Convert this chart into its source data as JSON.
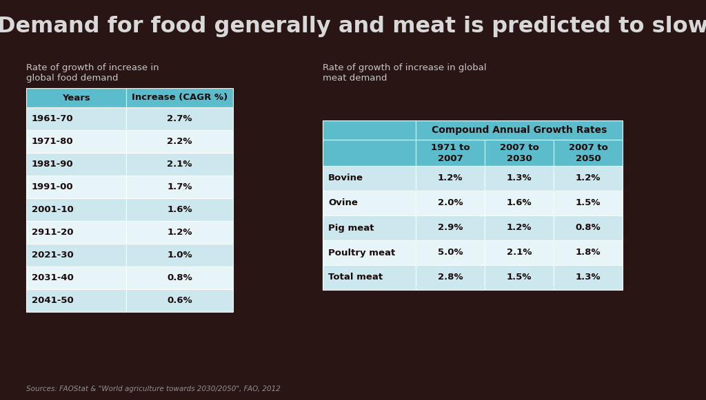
{
  "title": "Demand for food generally and meat is predicted to slow",
  "bg_color": "#2a1515",
  "source_text": "Sources: FAOStat & \"World agriculture towards 2030/2050\", FAO, 2012",
  "left_subtitle": "Rate of growth of increase in\nglobal food demand",
  "right_subtitle": "Rate of growth of increase in global\nmeat demand",
  "food_table": {
    "header": [
      "Years",
      "Increase (CAGR %)"
    ],
    "rows": [
      [
        "1961-70",
        "2.7%"
      ],
      [
        "1971-80",
        "2.2%"
      ],
      [
        "1981-90",
        "2.1%"
      ],
      [
        "1991-00",
        "1.7%"
      ],
      [
        "2001-10",
        "1.6%"
      ],
      [
        "2911-20",
        "1.2%"
      ],
      [
        "2021-30",
        "1.0%"
      ],
      [
        "2031-40",
        "0.8%"
      ],
      [
        "2041-50",
        "0.6%"
      ]
    ]
  },
  "meat_table": {
    "main_header": "Compound Annual Growth Rates",
    "sub_headers": [
      "",
      "1971 to\n2007",
      "2007 to\n2030",
      "2007 to\n2050"
    ],
    "rows": [
      [
        "Bovine",
        "1.2%",
        "1.3%",
        "1.2%"
      ],
      [
        "Ovine",
        "2.0%",
        "1.6%",
        "1.5%"
      ],
      [
        "Pig meat",
        "2.9%",
        "1.2%",
        "0.8%"
      ],
      [
        "Poultry meat",
        "5.0%",
        "2.1%",
        "1.8%"
      ],
      [
        "Total meat",
        "2.8%",
        "1.5%",
        "1.3%"
      ]
    ]
  },
  "header_color": "#5bbccc",
  "row_light_color": "#cce8ee",
  "row_lighter_color": "#e8f5f8",
  "table_text_dark": "#1a0a0a",
  "title_color": "#d8d8d8",
  "subtitle_color": "#c8c8c8",
  "source_color": "#909090"
}
